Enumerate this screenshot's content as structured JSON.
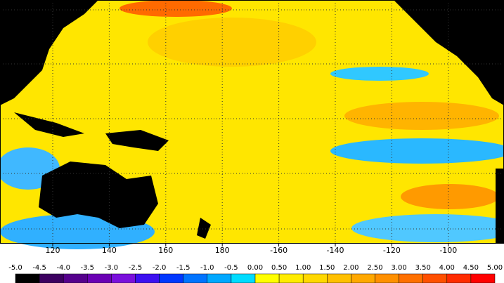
{
  "map": {
    "lon_ticks": [
      120,
      140,
      160,
      180,
      -160,
      -140,
      -120,
      -100
    ],
    "colorbar": {
      "labels": [
        "-5.0",
        "-4.5",
        "-4.0",
        "-3.5",
        "-3.0",
        "-2.5",
        "-2.0",
        "-1.5",
        "-1.0",
        "-0.5",
        "0.00",
        "0.50",
        "1.00",
        "1.50",
        "2.00",
        "2.50",
        "3.00",
        "3.50",
        "4.00",
        "4.50",
        "5.00"
      ],
      "colors": [
        "#000000",
        "#3c0060",
        "#55008c",
        "#6a00b4",
        "#7a10dc",
        "#3c10f0",
        "#0038ff",
        "#0074ff",
        "#00a8ff",
        "#00dcff",
        "#ffff00",
        "#ffec00",
        "#ffd800",
        "#ffc000",
        "#ffa800",
        "#ff9000",
        "#ff7000",
        "#ff5000",
        "#ff2c00",
        "#ff0000"
      ]
    }
  }
}
